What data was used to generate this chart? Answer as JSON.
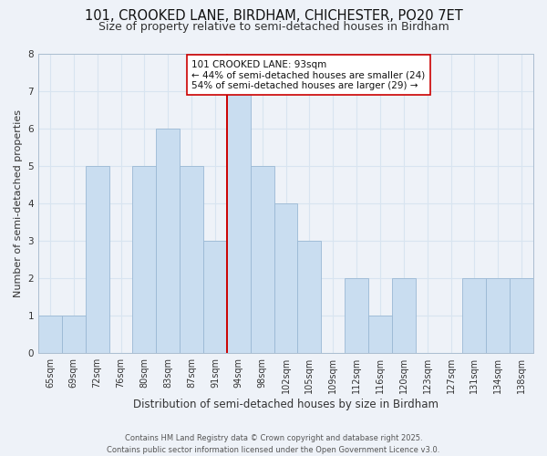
{
  "title": "101, CROOKED LANE, BIRDHAM, CHICHESTER, PO20 7ET",
  "subtitle": "Size of property relative to semi-detached houses in Birdham",
  "xlabel": "Distribution of semi-detached houses by size in Birdham",
  "ylabel": "Number of semi-detached properties",
  "bin_labels": [
    "65sqm",
    "69sqm",
    "72sqm",
    "76sqm",
    "80sqm",
    "83sqm",
    "87sqm",
    "91sqm",
    "94sqm",
    "98sqm",
    "102sqm",
    "105sqm",
    "109sqm",
    "112sqm",
    "116sqm",
    "120sqm",
    "123sqm",
    "127sqm",
    "131sqm",
    "134sqm",
    "138sqm"
  ],
  "bar_heights": [
    1,
    1,
    5,
    0,
    5,
    6,
    5,
    3,
    7,
    5,
    4,
    3,
    0,
    2,
    1,
    2,
    0,
    0,
    2,
    2,
    2
  ],
  "bar_color": "#c9ddf0",
  "bar_edge_color": "#9ab8d4",
  "background_color": "#eef2f8",
  "grid_color": "#d8e4f0",
  "vline_x_index": 8,
  "vline_color": "#cc0000",
  "annotation_title": "101 CROOKED LANE: 93sqm",
  "annotation_line2": "← 44% of semi-detached houses are smaller (24)",
  "annotation_line3": "54% of semi-detached houses are larger (29) →",
  "ylim": [
    0,
    8
  ],
  "yticks": [
    0,
    1,
    2,
    3,
    4,
    5,
    6,
    7,
    8
  ],
  "footer_line1": "Contains HM Land Registry data © Crown copyright and database right 2025.",
  "footer_line2": "Contains public sector information licensed under the Open Government Licence v3.0.",
  "title_fontsize": 10.5,
  "subtitle_fontsize": 9,
  "xlabel_fontsize": 8.5,
  "ylabel_fontsize": 8,
  "tick_fontsize": 7,
  "footer_fontsize": 6,
  "annotation_fontsize": 7.5
}
